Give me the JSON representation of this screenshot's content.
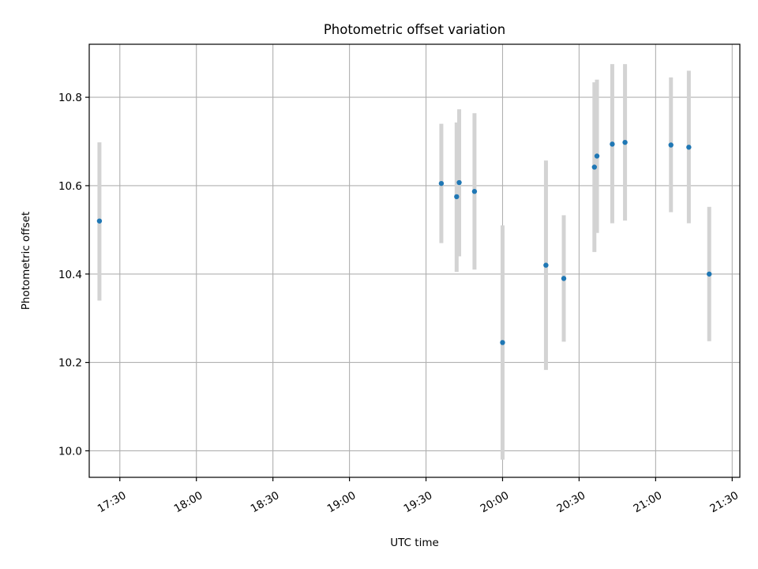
{
  "chart_data": {
    "type": "scatter",
    "title": "Photometric offset variation",
    "xlabel": "UTC time",
    "ylabel": "Photometric offset",
    "x_ticks": [
      "17:30",
      "18:00",
      "18:30",
      "19:00",
      "19:30",
      "20:00",
      "20:30",
      "21:00",
      "21:30"
    ],
    "y_ticks": [
      "10.0",
      "10.2",
      "10.4",
      "10.6",
      "10.8"
    ],
    "xlim": [
      "17:18",
      "21:33"
    ],
    "ylim": [
      9.94,
      10.92
    ],
    "grid": true,
    "colors": {
      "points": "#1f77b4",
      "errorbars": "#d3d3d3",
      "grid": "#b0b0b0"
    },
    "series": [
      {
        "x": [
          "17:22",
          "19:36",
          "19:42",
          "19:43",
          "19:49",
          "20:00",
          "20:17",
          "20:24",
          "20:36",
          "20:37",
          "20:43",
          "20:48",
          "21:06",
          "21:13",
          "21:21"
        ],
        "y": [
          10.52,
          10.605,
          10.575,
          10.607,
          10.587,
          10.245,
          10.42,
          10.39,
          10.642,
          10.667,
          10.694,
          10.698,
          10.692,
          10.687,
          10.4
        ],
        "yerr_low": [
          10.34,
          10.47,
          10.405,
          10.44,
          10.41,
          9.98,
          10.183,
          10.247,
          10.45,
          10.493,
          10.515,
          10.521,
          10.54,
          10.515,
          10.248
        ],
        "yerr_high": [
          10.698,
          10.74,
          10.743,
          10.773,
          10.764,
          10.51,
          10.657,
          10.533,
          10.834,
          10.84,
          10.875,
          10.875,
          10.845,
          10.86,
          10.552
        ]
      }
    ]
  }
}
